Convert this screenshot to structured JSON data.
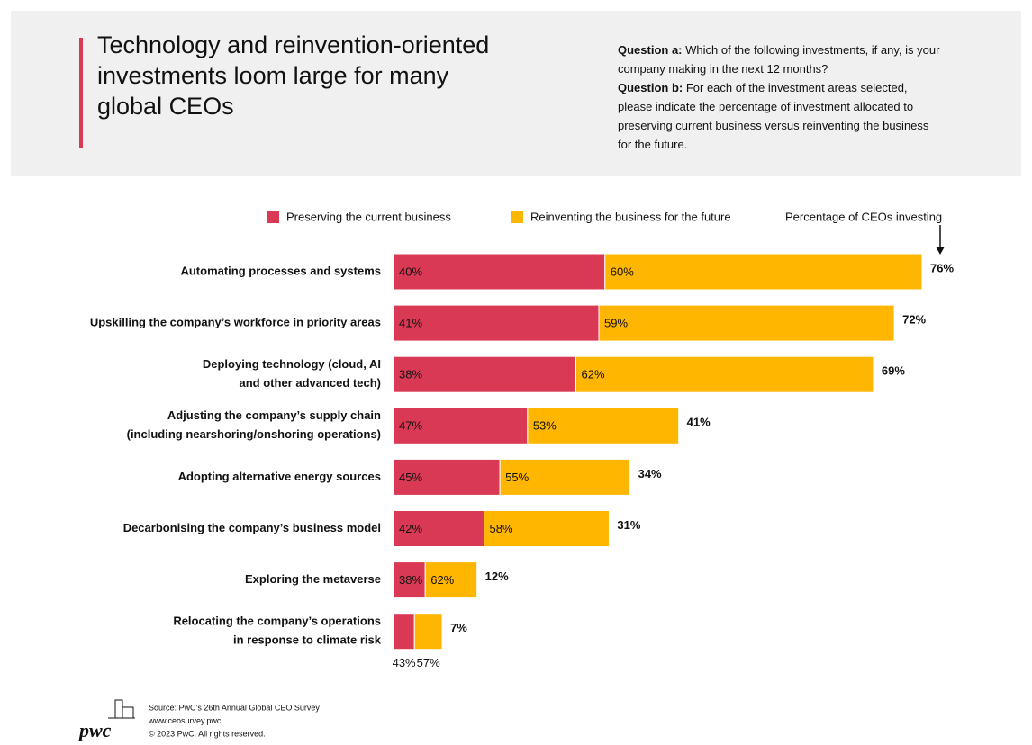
{
  "chart_data": {
    "type": "bar",
    "orientation": "horizontal",
    "stacked": true,
    "title": [
      "Technology and reinvention-oriented",
      "investments loom large for many",
      "global CEOs"
    ],
    "questions": [
      {
        "label": "Question a:",
        "text": [
          "Which of the following investments, if any, is your",
          "company making in the next 12 months?"
        ]
      },
      {
        "label": "Question b:",
        "text": [
          "For each of the investment areas selected,",
          "please indicate the percentage of investment allocated to",
          "preserving current business versus reinventing the business",
          "for the future."
        ]
      }
    ],
    "categories": [
      [
        "Automating processes and systems"
      ],
      [
        "Upskilling the company’s workforce in priority areas"
      ],
      [
        "Deploying technology (cloud, AI",
        "and other advanced tech)"
      ],
      [
        "Adjusting the company’s supply chain",
        "(including nearshoring/onshoring operations)"
      ],
      [
        "Adopting alternative energy sources"
      ],
      [
        "Decarbonising the company’s business model"
      ],
      [
        "Exploring the metaverse"
      ],
      [
        "Relocating the company’s operations",
        "in response to climate risk"
      ]
    ],
    "series": [
      {
        "name": "Preserving the current business",
        "color": "#d93954",
        "values": [
          40,
          41,
          38,
          47,
          45,
          42,
          38,
          43
        ],
        "value_labels": [
          "40%",
          "41%",
          "38%",
          "47%",
          "45%",
          "42%",
          "38%",
          "43%"
        ]
      },
      {
        "name": "Reinventing the business for the future",
        "color": "#ffb600",
        "values": [
          60,
          59,
          62,
          53,
          55,
          58,
          62,
          57
        ],
        "value_labels": [
          "60%",
          "59%",
          "62%",
          "53%",
          "55%",
          "58%",
          "62%",
          "57%"
        ]
      }
    ],
    "totals": {
      "name": "Percentage of CEOs investing",
      "values": [
        76,
        72,
        69,
        41,
        34,
        31,
        12,
        7
      ],
      "value_labels": [
        "76%",
        "72%",
        "69%",
        "41%",
        "34%",
        "31%",
        "12%",
        "7%"
      ]
    },
    "footer": {
      "logo": "pwc",
      "lines": [
        "Source: PwC’s 26th Annual Global CEO Survey",
        "www.ceosurvey.pwc",
        "© 2023 PwC. All rights reserved."
      ]
    }
  }
}
